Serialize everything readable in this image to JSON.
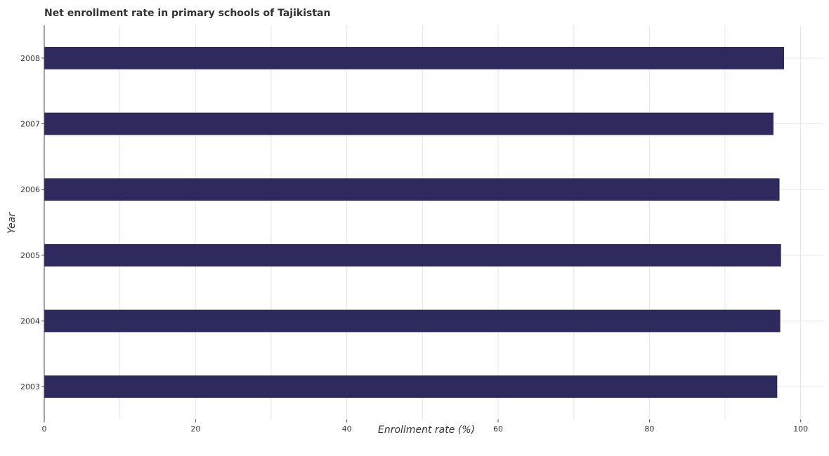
{
  "chart_data": {
    "type": "bar",
    "orientation": "horizontal",
    "title": "Net enrollment rate in primary schools of Tajikistan",
    "xlabel": "Enrollment rate (%)",
    "ylabel": "Year",
    "categories": [
      "2003",
      "2004",
      "2005",
      "2006",
      "2007",
      "2008"
    ],
    "values": [
      96.9,
      97.3,
      97.4,
      97.2,
      96.4,
      97.8
    ],
    "xlim": [
      0,
      103
    ],
    "xticks": [
      0,
      20,
      40,
      60,
      80,
      100
    ],
    "grid": true,
    "bar_color": "#2e2a5e"
  }
}
